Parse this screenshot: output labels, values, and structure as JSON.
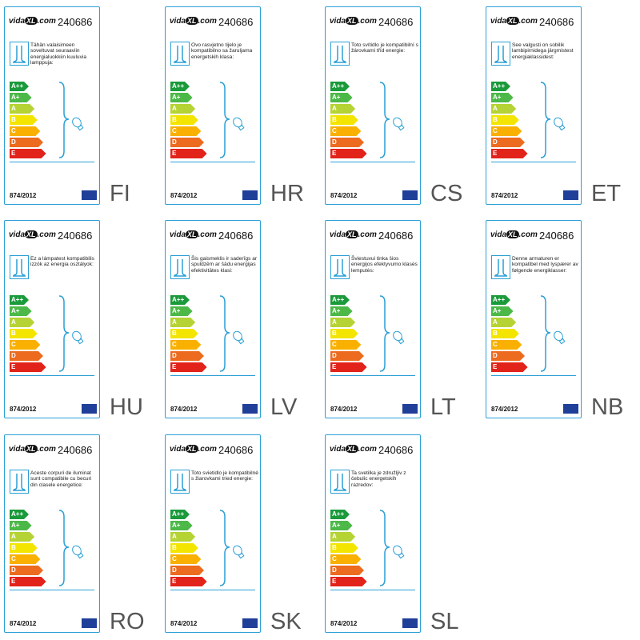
{
  "logo": {
    "prefix": "vida",
    "mark": "XL",
    "suffix": ".com"
  },
  "product_number": "240686",
  "classes": [
    "A++",
    "A+",
    "A",
    "B",
    "C",
    "D",
    "E"
  ],
  "regulation": "874/2012",
  "labels": [
    {
      "language": "FI",
      "text": "Tähän valaisimeen soveltuvat seuraaviin energialuokkiin kuuluvia lamppuja:"
    },
    {
      "language": "HR",
      "text": "Ovo rasvjetno tijelo je kompatibilno sa žaruljama energetskih klasa:"
    },
    {
      "language": "CS",
      "text": "Toto svítidlo je kompatibilní s žárovkami tříd energie:"
    },
    {
      "language": "ET",
      "text": "See valgusti on sobilik lambipirnidega järgmistest energiaklassidest:"
    },
    {
      "language": "HU",
      "text": "Ez a lámpatest kompatibilis izzók az energia osztályok:"
    },
    {
      "language": "LV",
      "text": "Šis gaismeklis ir saderīgs ar spuldzēm ar šādu energijas efektivitātes klasi:"
    },
    {
      "language": "LT",
      "text": "Šviestuvui tinka šios energijos efektyvumo klasės lemputės:"
    },
    {
      "language": "NB",
      "text": "Denne armaturen er kompatibel med lyspærer av følgende energiklasser:"
    },
    {
      "language": "RO",
      "text": "Aceste corpuri de iluminat sunt compatibile cu becuri din clasele energetice:"
    },
    {
      "language": "SK",
      "text": "Toto svietidlo je kompatibilné s žiarovkami tried energie:"
    },
    {
      "language": "SL",
      "text": "Ta svetilka je združljiv z čebulic energetskih razredov:"
    }
  ]
}
